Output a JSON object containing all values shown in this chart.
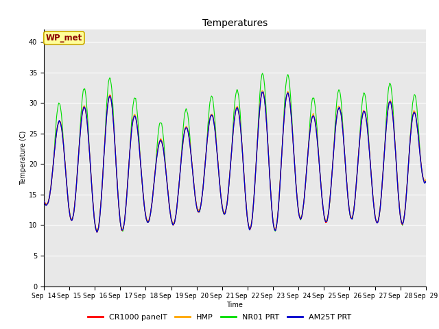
{
  "title": "Temperatures",
  "xlabel": "Time",
  "ylabel": "Temperature (C)",
  "ylim": [
    0,
    42
  ],
  "yticks": [
    0,
    5,
    10,
    15,
    20,
    25,
    30,
    35,
    40
  ],
  "x_labels": [
    "Sep 14",
    "Sep 15",
    "Sep 16",
    "Sep 17",
    "Sep 18",
    "Sep 19",
    "Sep 20",
    "Sep 21",
    "Sep 22",
    "Sep 23",
    "Sep 24",
    "Sep 25",
    "Sep 26",
    "Sep 27",
    "Sep 28",
    "Sep 29"
  ],
  "series": [
    {
      "label": "CR1000 panelT",
      "color": "#FF0000",
      "lw": 0.8,
      "zorder": 4
    },
    {
      "label": "HMP",
      "color": "#FFA500",
      "lw": 0.8,
      "zorder": 3
    },
    {
      "label": "NR01 PRT",
      "color": "#00DD00",
      "lw": 0.8,
      "zorder": 2
    },
    {
      "label": "AM25T PRT",
      "color": "#0000CC",
      "lw": 1.0,
      "zorder": 5
    }
  ],
  "annotation_text": "WP_met",
  "annotation_color": "#8B0000",
  "annotation_bg": "#FFFF99",
  "annotation_border": "#CCAA00",
  "plot_bg": "#E8E8E8",
  "title_fontsize": 10,
  "axis_fontsize": 7,
  "tick_fontsize": 7,
  "legend_fontsize": 8
}
